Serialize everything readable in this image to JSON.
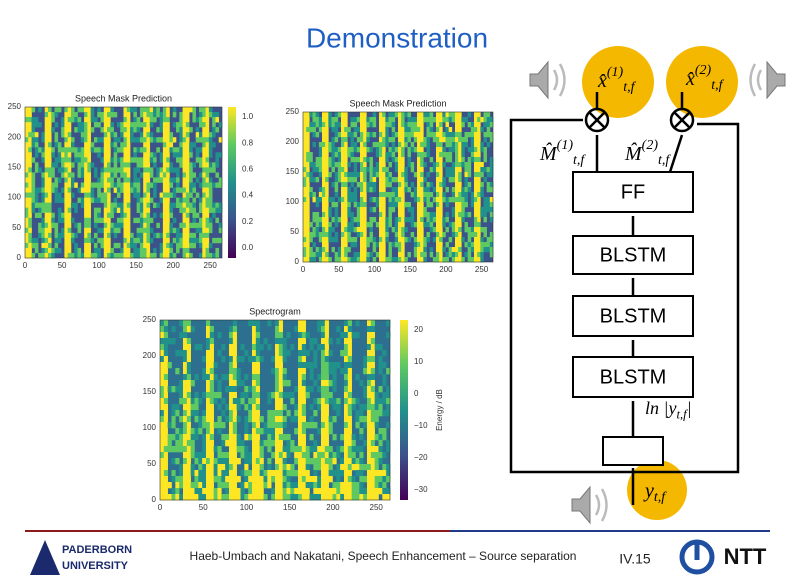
{
  "title": "Demonstration",
  "plots": [
    {
      "title": "Speech Mask Prediction",
      "yticks": [
        "250",
        "200",
        "150",
        "100",
        "50",
        "0"
      ],
      "xticks": [
        "0",
        "50",
        "100",
        "150",
        "200",
        "250"
      ],
      "colorbar": [
        "1.0",
        "0.8",
        "0.6",
        "0.4",
        "0.2",
        "0.0"
      ]
    },
    {
      "title": "Speech Mask Prediction",
      "yticks": [
        "250",
        "200",
        "150",
        "100",
        "50",
        "0"
      ],
      "xticks": [
        "0",
        "50",
        "100",
        "150",
        "200",
        "250"
      ]
    },
    {
      "title": "Spectrogram",
      "yticks": [
        "250",
        "200",
        "150",
        "100",
        "50",
        "0"
      ],
      "xticks": [
        "0",
        "50",
        "100",
        "150",
        "200",
        "250"
      ],
      "colorbar": [
        "20",
        "10",
        "0",
        "−10",
        "−20",
        "−30"
      ],
      "colorbar_label": "Energy / dB"
    }
  ],
  "diagram": {
    "blocks": [
      "FF",
      "BLSTM",
      "BLSTM",
      "BLSTM"
    ],
    "outputs": [
      {
        "base": "x̂",
        "sup": "(1)",
        "sub": "t,f"
      },
      {
        "base": "x̂",
        "sup": "(2)",
        "sub": "t,f"
      }
    ],
    "masks": [
      {
        "base": "M̂",
        "sup": "(1)",
        "sub": "t,f"
      },
      {
        "base": "M̂",
        "sup": "(2)",
        "sub": "t,f"
      }
    ],
    "log": {
      "base": "ln |y",
      "sub": "t,f",
      "end": "|"
    },
    "input": {
      "base": "y",
      "sub": "t,f"
    }
  },
  "footer": {
    "university": [
      "PADERBORN",
      "UNIVERSITY"
    ],
    "citation": "Haeb-Umbach and Nakatani, Speech Enhancement – Source separation",
    "page": "IV.15",
    "logo": "NTT"
  }
}
